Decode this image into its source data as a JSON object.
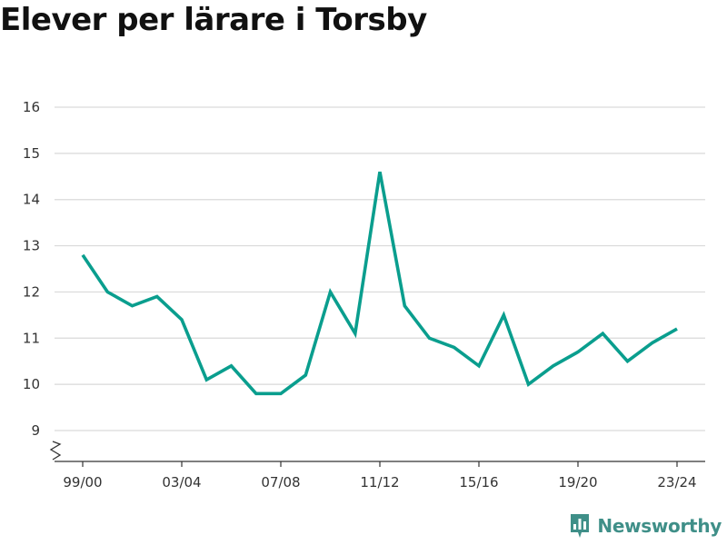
{
  "chart_data": {
    "type": "line",
    "title": "Elever per lärare i Torsby",
    "xlabel": "",
    "ylabel": "",
    "categories": [
      "99/00",
      "00/01",
      "01/02",
      "02/03",
      "03/04",
      "04/05",
      "05/06",
      "06/07",
      "07/08",
      "08/09",
      "09/10",
      "10/11",
      "11/12",
      "12/13",
      "13/14",
      "14/15",
      "15/16",
      "16/17",
      "17/18",
      "18/19",
      "19/20",
      "20/21",
      "21/22",
      "22/23",
      "23/24"
    ],
    "x_tick_labels": [
      "99/00",
      "03/04",
      "07/08",
      "11/12",
      "15/16",
      "19/20",
      "23/24"
    ],
    "series": [
      {
        "values": [
          12.8,
          12.0,
          11.7,
          11.9,
          11.4,
          10.1,
          10.4,
          9.8,
          9.8,
          10.2,
          12.0,
          11.1,
          14.6,
          11.7,
          11.0,
          10.8,
          10.4,
          11.5,
          10.0,
          10.4,
          10.7,
          11.1,
          10.5,
          10.9,
          11.2
        ]
      }
    ],
    "yticks": [
      9,
      10,
      11,
      12,
      13,
      14,
      15,
      16
    ],
    "ylim": [
      9,
      16
    ],
    "grid": true,
    "axis_break": true,
    "colors": {
      "line": "#0a9e8e",
      "grid": "#d9d9d9",
      "axis": "#333333"
    }
  },
  "brand": {
    "name": "Newsworthy",
    "icon": "newsworthy-logo-icon",
    "color": "#3f8f88"
  }
}
